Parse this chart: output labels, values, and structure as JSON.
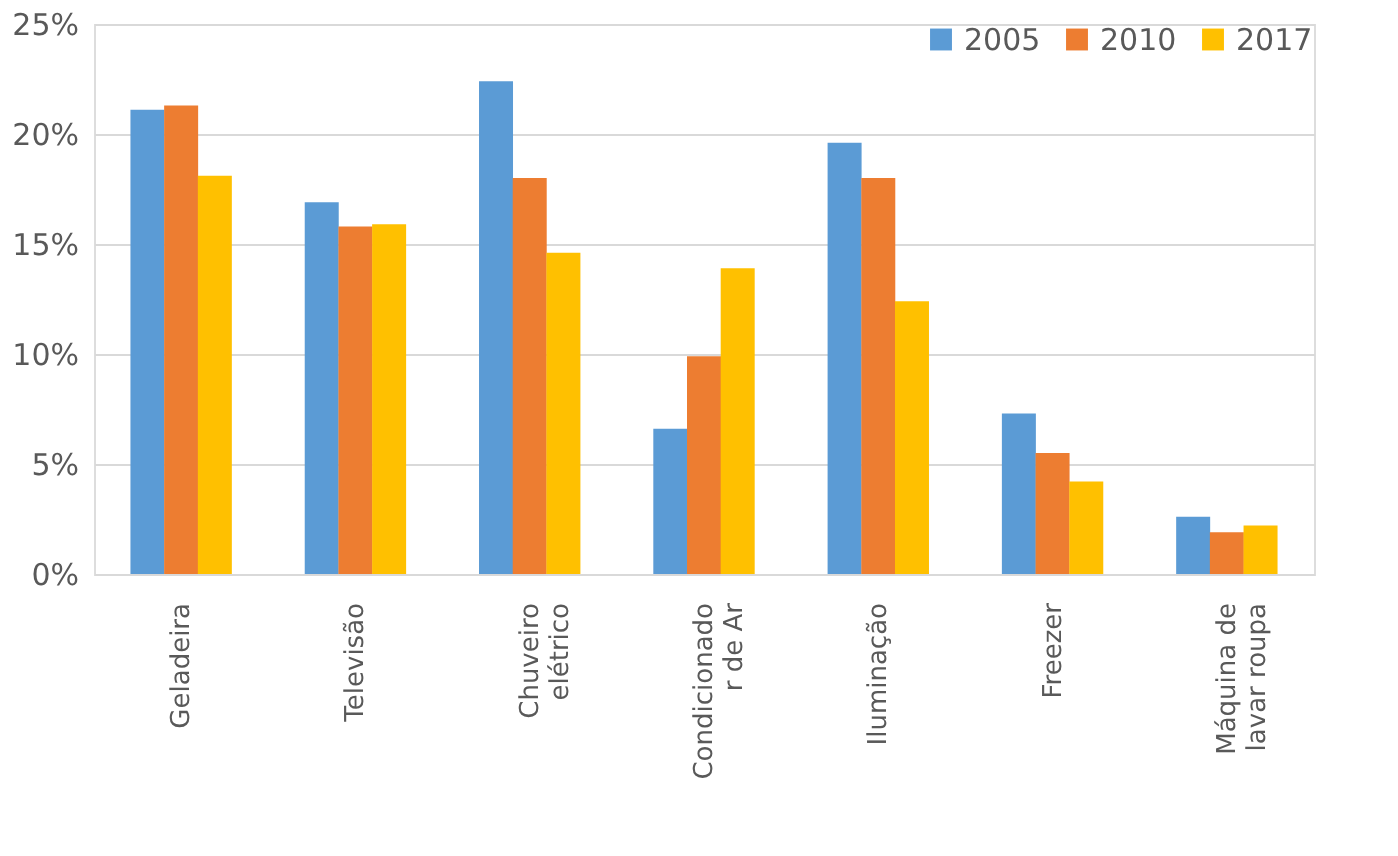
{
  "chart_data": {
    "type": "bar",
    "categories": [
      "Geladeira",
      "Televisão",
      "Chuveiro\nelétrico",
      "Condicionado\nr de Ar",
      "Iluminação",
      "Freezer",
      "Máquina de\nlavar roupa"
    ],
    "series": [
      {
        "name": "2005",
        "color": "#5b9bd5",
        "values": [
          21.1,
          16.9,
          22.4,
          6.6,
          19.6,
          7.3,
          2.6
        ]
      },
      {
        "name": "2010",
        "color": "#ed7d31",
        "values": [
          21.3,
          15.8,
          18.0,
          9.9,
          18.0,
          5.5,
          1.9
        ]
      },
      {
        "name": "2017",
        "color": "#ffc000",
        "values": [
          18.1,
          15.9,
          14.6,
          13.9,
          12.4,
          4.2,
          2.2
        ]
      }
    ],
    "ylim": [
      0,
      25
    ],
    "yticks": [
      {
        "value": 0,
        "label": "0%"
      },
      {
        "value": 5,
        "label": "5%"
      },
      {
        "value": 10,
        "label": "10%"
      },
      {
        "value": 15,
        "label": "15%"
      },
      {
        "value": 20,
        "label": "20%"
      },
      {
        "value": 25,
        "label": "25%"
      }
    ],
    "grid": "y",
    "legend": "top right"
  }
}
